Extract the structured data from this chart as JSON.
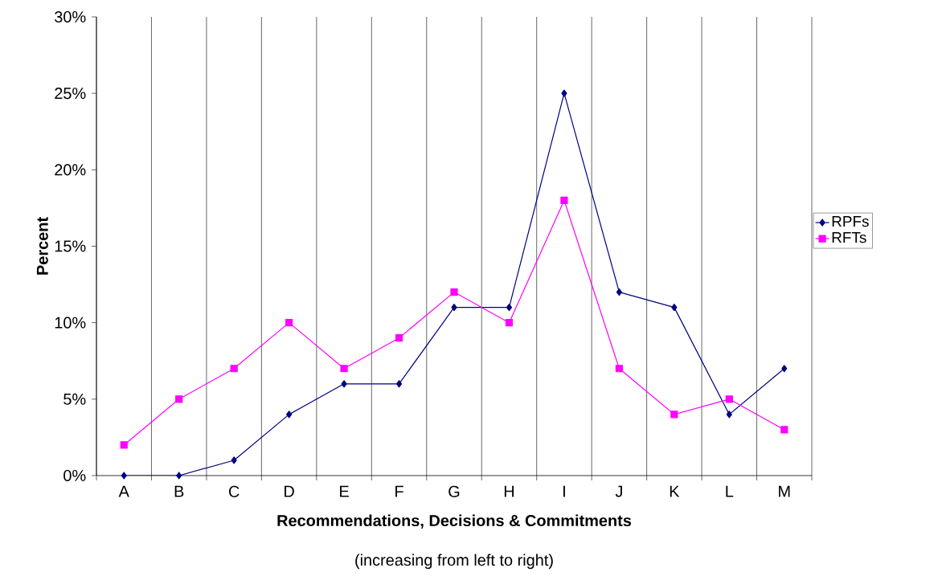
{
  "chart_data": {
    "type": "line",
    "categories": [
      "A",
      "B",
      "C",
      "D",
      "E",
      "F",
      "G",
      "H",
      "I",
      "J",
      "K",
      "L",
      "M"
    ],
    "series": [
      {
        "name": "RPFs",
        "color": "#000080",
        "marker": "diamond",
        "values": [
          0,
          0,
          1,
          4,
          6,
          6,
          11,
          11,
          25,
          12,
          11,
          4,
          7
        ]
      },
      {
        "name": "RFTs",
        "color": "#ff00ff",
        "marker": "square",
        "values": [
          2,
          5,
          7,
          10,
          7,
          9,
          12,
          10,
          18,
          7,
          4,
          5,
          3
        ]
      }
    ],
    "ylim": [
      0,
      30
    ],
    "yticks": [
      {
        "value": 0,
        "label": "0%"
      },
      {
        "value": 5,
        "label": "5%"
      },
      {
        "value": 10,
        "label": "10%"
      },
      {
        "value": 15,
        "label": "15%"
      },
      {
        "value": 20,
        "label": "20%"
      },
      {
        "value": 25,
        "label": "25%"
      },
      {
        "value": 30,
        "label": "30%"
      }
    ],
    "xlabel": "Recommendations, Decisions & Commitments",
    "ylabel": "Percent",
    "annotations": [
      "(increasing from left to right)"
    ],
    "grid": "x",
    "legend": "right"
  }
}
